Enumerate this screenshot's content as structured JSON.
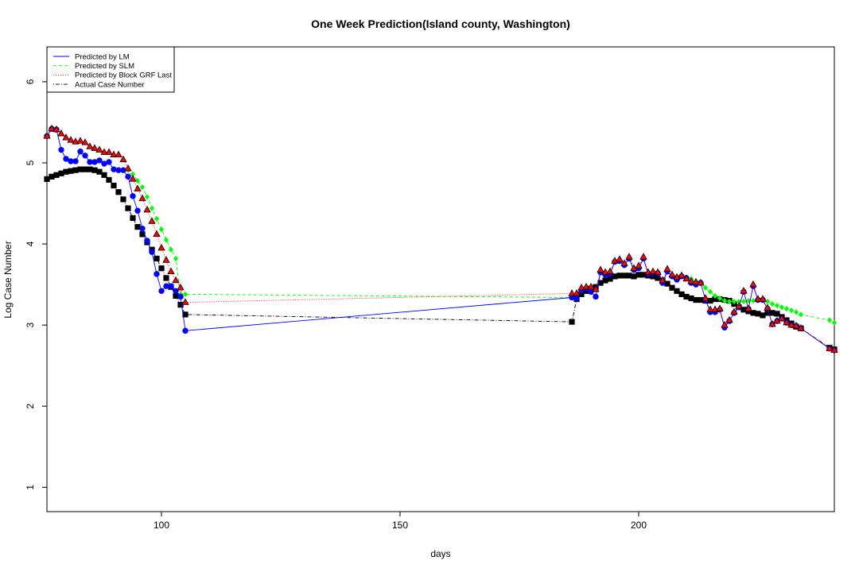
{
  "chart_data": {
    "type": "scatter",
    "title": "One Week Prediction(Island county, Washington)",
    "xlabel": "days",
    "ylabel": "Log Case Number",
    "xlim": [
      76,
      241
    ],
    "ylim": [
      0.7,
      6.43
    ],
    "xticks": [
      100,
      150,
      200
    ],
    "yticks": [
      1,
      2,
      3,
      4,
      5,
      6
    ],
    "legend_position": "top-left",
    "x": [
      76,
      77,
      78,
      79,
      80,
      81,
      82,
      83,
      84,
      85,
      86,
      87,
      88,
      89,
      90,
      91,
      92,
      93,
      94,
      95,
      96,
      97,
      98,
      99,
      100,
      101,
      102,
      103,
      104,
      105,
      186,
      187,
      188,
      189,
      190,
      191,
      192,
      193,
      194,
      195,
      196,
      197,
      198,
      199,
      200,
      201,
      202,
      203,
      204,
      205,
      206,
      207,
      208,
      209,
      210,
      211,
      212,
      213,
      214,
      215,
      216,
      217,
      218,
      219,
      220,
      221,
      222,
      223,
      224,
      225,
      226,
      227,
      228,
      229,
      230,
      231,
      232,
      233,
      234,
      240,
      241
    ],
    "series": [
      {
        "name": "Predicted by LM",
        "color": "#0000ff",
        "line_style": "solid",
        "marker": "circle",
        "values": [
          5.33,
          5.42,
          5.41,
          5.16,
          5.05,
          5.02,
          5.02,
          5.14,
          5.09,
          5.01,
          5.01,
          5.03,
          4.99,
          5.01,
          4.92,
          4.91,
          4.91,
          4.83,
          4.59,
          4.41,
          4.19,
          4.04,
          3.9,
          3.63,
          3.42,
          3.48,
          3.48,
          3.42,
          3.35,
          2.93,
          3.34,
          3.33,
          3.43,
          3.45,
          3.41,
          3.35,
          3.65,
          3.62,
          3.63,
          3.78,
          3.79,
          3.74,
          3.82,
          3.68,
          3.7,
          3.82,
          3.63,
          3.64,
          3.64,
          3.52,
          3.66,
          3.6,
          3.56,
          3.6,
          3.58,
          3.52,
          3.5,
          3.52,
          3.31,
          3.16,
          3.16,
          3.19,
          2.97,
          3.05,
          3.15,
          3.22,
          3.41,
          3.2,
          3.48,
          3.31,
          3.31,
          3.2,
          3.01,
          3.05,
          3.08,
          3.03,
          3.0,
          2.99,
          2.96,
          2.71,
          2.69
        ]
      },
      {
        "name": "Predicted by SLM",
        "color": "#00ff00",
        "line_style": "dashed",
        "marker": "diamond",
        "values": [
          5.33,
          5.42,
          5.41,
          5.16,
          5.05,
          5.02,
          5.02,
          5.14,
          5.09,
          5.01,
          5.01,
          5.03,
          4.99,
          5.01,
          4.92,
          4.91,
          4.91,
          4.91,
          4.86,
          4.78,
          4.7,
          4.58,
          4.44,
          4.31,
          4.18,
          4.05,
          3.93,
          3.82,
          3.38,
          3.38,
          3.34,
          3.33,
          3.43,
          3.45,
          3.41,
          3.35,
          3.65,
          3.62,
          3.63,
          3.78,
          3.79,
          3.74,
          3.82,
          3.68,
          3.7,
          3.82,
          3.63,
          3.64,
          3.64,
          3.52,
          3.66,
          3.6,
          3.6,
          3.6,
          3.59,
          3.57,
          3.54,
          3.51,
          3.46,
          3.41,
          3.36,
          3.33,
          3.3,
          3.29,
          3.29,
          3.29,
          3.29,
          3.3,
          3.3,
          3.32,
          3.32,
          3.29,
          3.26,
          3.24,
          3.22,
          3.2,
          3.18,
          3.16,
          3.13,
          3.06,
          3.03
        ]
      },
      {
        "name": "Predicted by Block GRF Last",
        "color": "#ff0000",
        "line_style": "dotted",
        "marker": "triangle",
        "values": [
          5.33,
          5.42,
          5.41,
          5.36,
          5.31,
          5.28,
          5.26,
          5.27,
          5.25,
          5.2,
          5.18,
          5.16,
          5.13,
          5.13,
          5.1,
          5.1,
          5.04,
          4.93,
          4.8,
          4.68,
          4.56,
          4.42,
          4.28,
          4.12,
          3.95,
          3.8,
          3.66,
          3.55,
          3.46,
          3.28,
          3.39,
          3.39,
          3.46,
          3.47,
          3.47,
          3.44,
          3.68,
          3.65,
          3.66,
          3.79,
          3.81,
          3.76,
          3.84,
          3.7,
          3.73,
          3.84,
          3.65,
          3.66,
          3.65,
          3.55,
          3.69,
          3.62,
          3.59,
          3.61,
          3.57,
          3.54,
          3.53,
          3.52,
          3.33,
          3.19,
          3.19,
          3.2,
          3.0,
          3.06,
          3.16,
          3.23,
          3.42,
          3.2,
          3.5,
          3.32,
          3.32,
          3.21,
          3.01,
          3.05,
          3.08,
          3.03,
          3.0,
          2.99,
          2.96,
          2.71,
          2.69
        ]
      },
      {
        "name": "Actual Case Number",
        "color": "#000000",
        "line_style": "dotdash",
        "marker": "square",
        "values": [
          4.8,
          4.83,
          4.85,
          4.87,
          4.89,
          4.9,
          4.91,
          4.92,
          4.92,
          4.92,
          4.91,
          4.89,
          4.85,
          4.79,
          4.72,
          4.64,
          4.55,
          4.44,
          4.32,
          4.21,
          4.12,
          4.02,
          3.93,
          3.82,
          3.7,
          3.58,
          3.47,
          3.36,
          3.25,
          3.13,
          3.04,
          3.32,
          3.38,
          3.42,
          3.45,
          3.47,
          3.52,
          3.55,
          3.57,
          3.6,
          3.61,
          3.61,
          3.61,
          3.6,
          3.62,
          3.62,
          3.61,
          3.6,
          3.58,
          3.55,
          3.51,
          3.46,
          3.42,
          3.38,
          3.35,
          3.33,
          3.31,
          3.31,
          3.3,
          3.3,
          3.32,
          3.32,
          3.31,
          3.3,
          3.26,
          3.22,
          3.19,
          3.17,
          3.15,
          3.14,
          3.12,
          3.15,
          3.15,
          3.14,
          3.1,
          3.06,
          3.02,
          2.98,
          2.96,
          2.72,
          2.7
        ]
      }
    ]
  }
}
